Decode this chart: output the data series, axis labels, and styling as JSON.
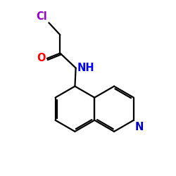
{
  "background_color": "#ffffff",
  "atom_colors": {
    "N_amide": "#0000ff",
    "N_ring": "#0000cc",
    "O": "#ff0000",
    "Cl": "#9900cc"
  },
  "bond_color": "#000000",
  "bond_width": 1.6,
  "fig_size": [
    2.5,
    2.5
  ],
  "dpi": 100,
  "xlim": [
    0,
    10
  ],
  "ylim": [
    0,
    10
  ],
  "font_size": 10.5
}
